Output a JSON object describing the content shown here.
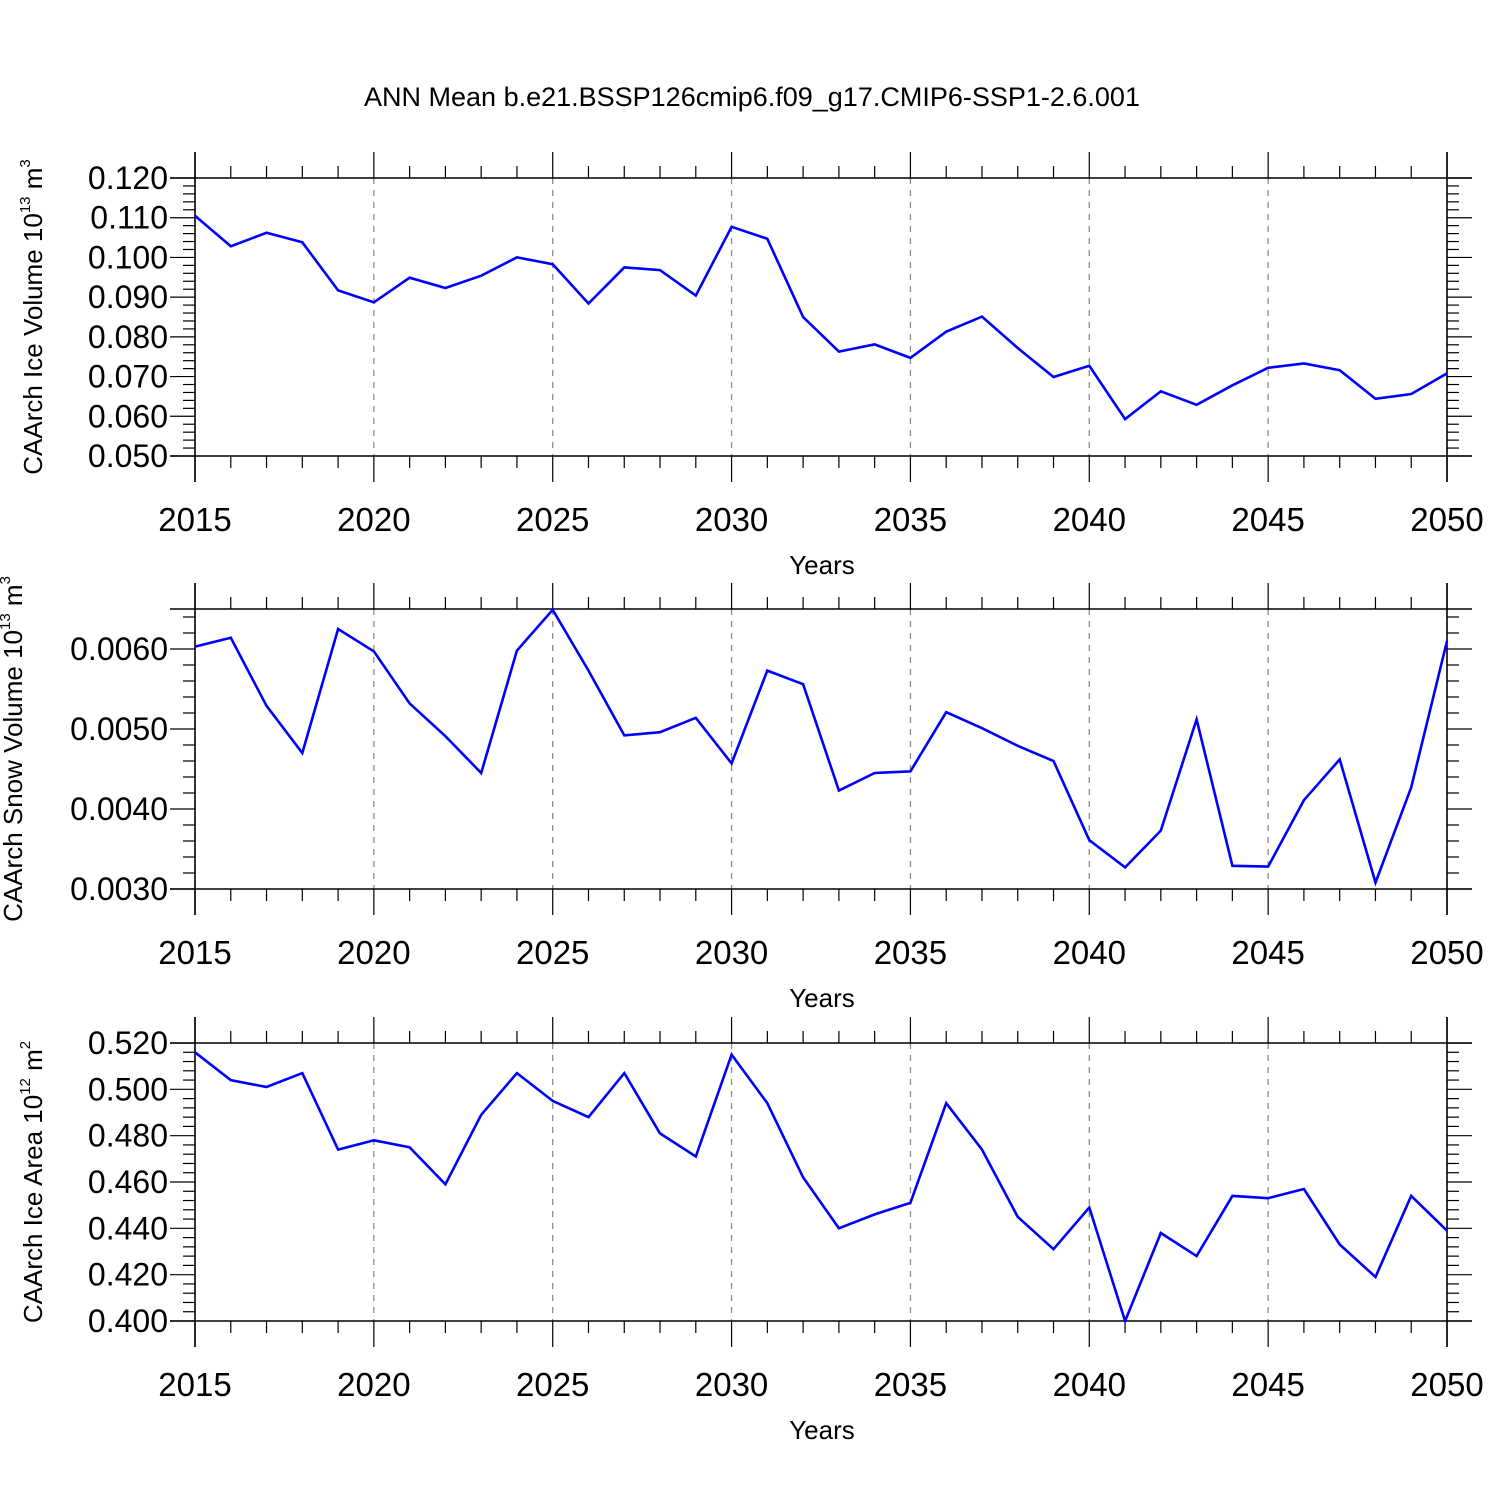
{
  "title": "ANN Mean b.e21.BSSP126cmip6.f09_g17.CMIP6-SSP1-2.6.001",
  "chart_data": [
    {
      "type": "line",
      "xlabel": "Years",
      "ylabel_main": "CAArch Ice Volume 10",
      "ylabel_exp": "13",
      "ylabel_unit": " m",
      "ylabel_unit_exp": "3",
      "xlim": [
        2015,
        2050
      ],
      "ylim": [
        0.05,
        0.12
      ],
      "xticks": [
        2015,
        2020,
        2025,
        2030,
        2035,
        2040,
        2045,
        2050
      ],
      "yticks": [
        0.05,
        0.06,
        0.07,
        0.08,
        0.09,
        0.1,
        0.11,
        0.12
      ],
      "ytick_labels": [
        "0.050",
        "0.060",
        "0.070",
        "0.080",
        "0.090",
        "0.100",
        "0.110",
        "0.120"
      ],
      "line_color": "#0000ff",
      "x": [
        2015,
        2016,
        2017,
        2018,
        2019,
        2020,
        2021,
        2022,
        2023,
        2024,
        2025,
        2026,
        2027,
        2028,
        2029,
        2030,
        2031,
        2032,
        2033,
        2034,
        2035,
        2036,
        2037,
        2038,
        2039,
        2040,
        2041,
        2042,
        2043,
        2044,
        2045,
        2046,
        2047,
        2048,
        2049,
        2050
      ],
      "values": [
        0.1105,
        0.1028,
        0.1062,
        0.1038,
        0.0917,
        0.0887,
        0.0949,
        0.0923,
        0.0954,
        0.1,
        0.0983,
        0.0884,
        0.0975,
        0.0968,
        0.0904,
        0.1077,
        0.1047,
        0.085,
        0.0763,
        0.0781,
        0.0747,
        0.0813,
        0.0851,
        0.0772,
        0.0699,
        0.0727,
        0.0593,
        0.0663,
        0.0629,
        0.0678,
        0.0722,
        0.0733,
        0.0716,
        0.0644,
        0.0656,
        0.0708
      ]
    },
    {
      "type": "line",
      "xlabel": "Years",
      "ylabel_main": "CAArch Snow Volume 10",
      "ylabel_exp": "13",
      "ylabel_unit": " m",
      "ylabel_unit_exp": "3",
      "xlim": [
        2015,
        2050
      ],
      "ylim": [
        0.003,
        0.0065
      ],
      "xticks": [
        2015,
        2020,
        2025,
        2030,
        2035,
        2040,
        2045,
        2050
      ],
      "yticks": [
        0.003,
        0.004,
        0.005,
        0.006
      ],
      "ytick_labels": [
        "0.0030",
        "0.0040",
        "0.0050",
        "0.0060"
      ],
      "line_color": "#0000ff",
      "x": [
        2015,
        2016,
        2017,
        2018,
        2019,
        2020,
        2021,
        2022,
        2023,
        2024,
        2025,
        2026,
        2027,
        2028,
        2029,
        2030,
        2031,
        2032,
        2033,
        2034,
        2035,
        2036,
        2037,
        2038,
        2039,
        2040,
        2041,
        2042,
        2043,
        2044,
        2045,
        2046,
        2047,
        2048,
        2049,
        2050
      ],
      "values": [
        0.00603,
        0.00614,
        0.00529,
        0.0047,
        0.00625,
        0.00597,
        0.00532,
        0.00491,
        0.00445,
        0.00598,
        0.00649,
        0.00573,
        0.00492,
        0.00496,
        0.00514,
        0.00457,
        0.00573,
        0.00556,
        0.00423,
        0.00445,
        0.00447,
        0.00521,
        0.00501,
        0.00479,
        0.0046,
        0.00361,
        0.00327,
        0.00373,
        0.00512,
        0.00329,
        0.00328,
        0.00411,
        0.00462,
        0.00308,
        0.00427,
        0.0061
      ]
    },
    {
      "type": "line",
      "xlabel": "Years",
      "ylabel_main": "CAArch Ice Area 10",
      "ylabel_exp": "12",
      "ylabel_unit": " m",
      "ylabel_unit_exp": "2",
      "xlim": [
        2015,
        2050
      ],
      "ylim": [
        0.4,
        0.52
      ],
      "xticks": [
        2015,
        2020,
        2025,
        2030,
        2035,
        2040,
        2045,
        2050
      ],
      "yticks": [
        0.4,
        0.42,
        0.44,
        0.46,
        0.48,
        0.5,
        0.52
      ],
      "ytick_labels": [
        "0.400",
        "0.420",
        "0.440",
        "0.460",
        "0.480",
        "0.500",
        "0.520"
      ],
      "line_color": "#0000ff",
      "x": [
        2015,
        2016,
        2017,
        2018,
        2019,
        2020,
        2021,
        2022,
        2023,
        2024,
        2025,
        2026,
        2027,
        2028,
        2029,
        2030,
        2031,
        2032,
        2033,
        2034,
        2035,
        2036,
        2037,
        2038,
        2039,
        2040,
        2041,
        2042,
        2043,
        2044,
        2045,
        2046,
        2047,
        2048,
        2049,
        2050
      ],
      "values": [
        0.516,
        0.504,
        0.501,
        0.507,
        0.474,
        0.478,
        0.475,
        0.459,
        0.489,
        0.507,
        0.495,
        0.488,
        0.507,
        0.481,
        0.471,
        0.515,
        0.494,
        0.462,
        0.44,
        0.446,
        0.451,
        0.494,
        0.474,
        0.445,
        0.431,
        0.449,
        0.4,
        0.438,
        0.428,
        0.454,
        0.453,
        0.457,
        0.433,
        0.419,
        0.454,
        0.439
      ]
    }
  ]
}
